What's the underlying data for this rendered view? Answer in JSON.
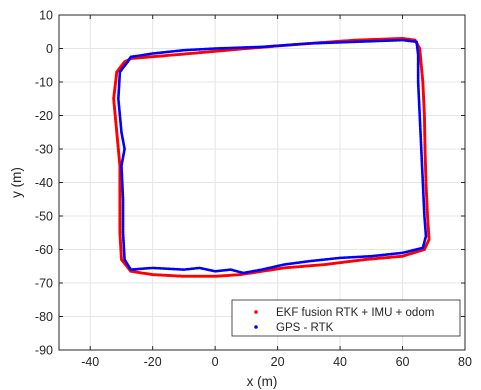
{
  "chart_data": {
    "type": "scatter",
    "xlabel": "x (m)",
    "ylabel": "y (m)",
    "xlim": [
      -50,
      80
    ],
    "ylim": [
      -90,
      10
    ],
    "xticks": [
      -40,
      -20,
      0,
      20,
      40,
      60,
      80
    ],
    "yticks": [
      10,
      0,
      -10,
      -20,
      -30,
      -40,
      -50,
      -60,
      -70,
      -80,
      -90
    ],
    "grid": true,
    "legend_position": "bottom-right",
    "series": [
      {
        "name": "EKF fusion RTK + IMU + odom",
        "color": "#ff0000",
        "points": [
          [
            -27,
            -3
          ],
          [
            -8,
            -1.5
          ],
          [
            10,
            0
          ],
          [
            30,
            1.5
          ],
          [
            45,
            2.5
          ],
          [
            60,
            3
          ],
          [
            64,
            2.5
          ],
          [
            65.5,
            0
          ],
          [
            66.5,
            -10
          ],
          [
            67,
            -20
          ],
          [
            67.2,
            -30
          ],
          [
            67.5,
            -40
          ],
          [
            68,
            -50
          ],
          [
            68.5,
            -57
          ],
          [
            67,
            -60
          ],
          [
            60,
            -62
          ],
          [
            48,
            -63
          ],
          [
            35,
            -64.5
          ],
          [
            22,
            -65.5
          ],
          [
            15,
            -66.5
          ],
          [
            8,
            -67.5
          ],
          [
            0,
            -68
          ],
          [
            -10,
            -68
          ],
          [
            -20,
            -67.5
          ],
          [
            -27,
            -66.5
          ],
          [
            -30,
            -63
          ],
          [
            -30.5,
            -55
          ],
          [
            -30.5,
            -45
          ],
          [
            -30.5,
            -35
          ],
          [
            -31.5,
            -25
          ],
          [
            -32.5,
            -15
          ],
          [
            -31.5,
            -7
          ],
          [
            -29,
            -4
          ],
          [
            -27,
            -3
          ]
        ]
      },
      {
        "name": "GPS - RTK",
        "color": "#0000ff",
        "points": [
          [
            -27,
            -2.5
          ],
          [
            -20,
            -1.5
          ],
          [
            -10,
            -0.5
          ],
          [
            0,
            0
          ],
          [
            15,
            0.5
          ],
          [
            30,
            1.5
          ],
          [
            45,
            2
          ],
          [
            60,
            2.5
          ],
          [
            64.5,
            2
          ],
          [
            65,
            -2
          ],
          [
            65,
            -10
          ],
          [
            65.5,
            -20
          ],
          [
            66,
            -30
          ],
          [
            66.5,
            -40
          ],
          [
            67,
            -50
          ],
          [
            67.5,
            -56
          ],
          [
            66.5,
            -59.5
          ],
          [
            60,
            -61
          ],
          [
            50,
            -62
          ],
          [
            40,
            -62.5
          ],
          [
            30,
            -63.5
          ],
          [
            22,
            -64.5
          ],
          [
            15,
            -66
          ],
          [
            9,
            -67
          ],
          [
            5,
            -66
          ],
          [
            0,
            -66.5
          ],
          [
            -5,
            -65.5
          ],
          [
            -10,
            -66
          ],
          [
            -20,
            -65.5
          ],
          [
            -27,
            -66
          ],
          [
            -29,
            -63
          ],
          [
            -29.5,
            -55
          ],
          [
            -29.5,
            -45
          ],
          [
            -30,
            -35
          ],
          [
            -29,
            -30
          ],
          [
            -30,
            -25
          ],
          [
            -31,
            -15
          ],
          [
            -30.5,
            -7
          ],
          [
            -28,
            -4
          ],
          [
            -27,
            -2.5
          ]
        ]
      }
    ]
  }
}
